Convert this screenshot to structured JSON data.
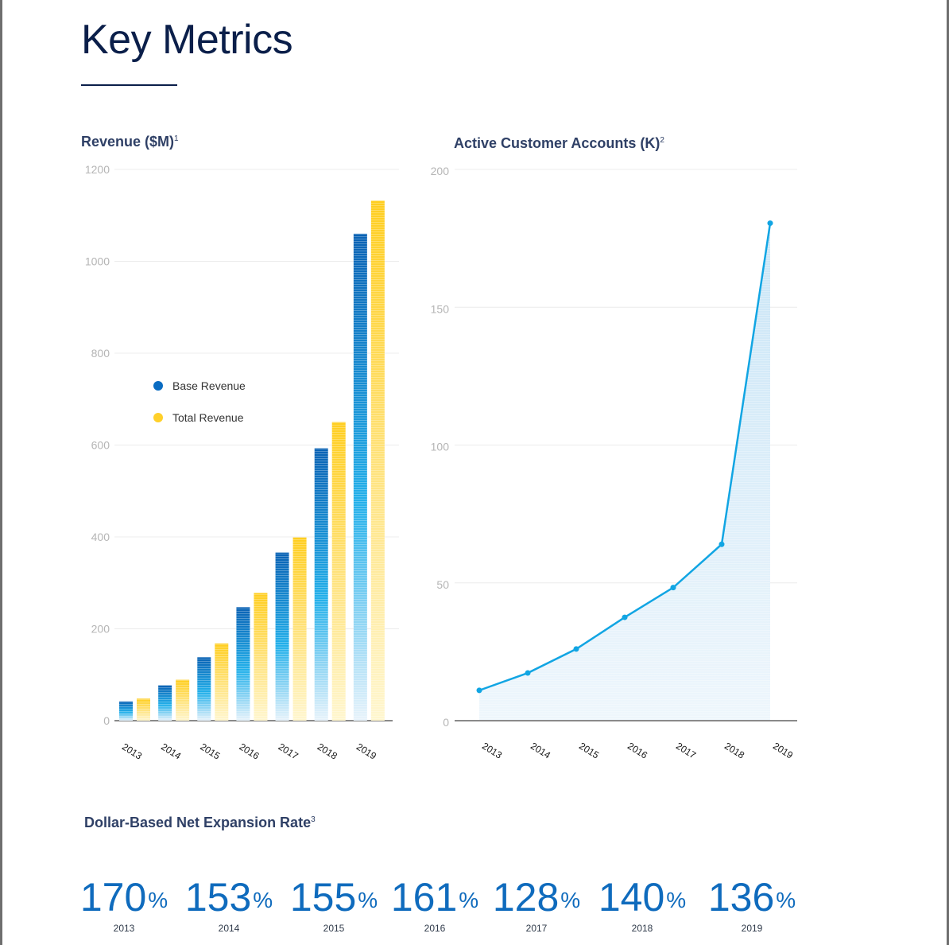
{
  "page": {
    "title": "Key Metrics"
  },
  "chart_data": [
    {
      "type": "bar",
      "title": "Revenue ($M)",
      "title_note": "1",
      "categories": [
        "2013",
        "2014",
        "2015",
        "2016",
        "2017",
        "2018",
        "2019"
      ],
      "series": [
        {
          "name": "Base Revenue",
          "color": "#0a6cc2",
          "values": [
            42,
            77,
            138,
            247,
            366,
            593,
            1060
          ]
        },
        {
          "name": "Total Revenue",
          "color": "#ffd02a",
          "values": [
            48,
            89,
            168,
            278,
            399,
            650,
            1132
          ]
        }
      ],
      "ylim": [
        0,
        1200
      ],
      "yticks": [
        0,
        200,
        400,
        600,
        800,
        1000,
        1200
      ],
      "grid": true,
      "legend": "left-middle"
    },
    {
      "type": "area",
      "title": "Active Customer Accounts (K)",
      "title_note": "2",
      "x": [
        "2013",
        "2014",
        "2015",
        "2016",
        "2017",
        "2018",
        "2019"
      ],
      "series": [
        {
          "color": "#11a5e3",
          "values": [
            11,
            17.3,
            26,
            37.5,
            48.3,
            64,
            180.5
          ]
        }
      ],
      "ylim": [
        0,
        200
      ],
      "yticks": [
        0,
        50,
        100,
        150,
        200
      ],
      "grid": true
    }
  ],
  "ndr": {
    "title": "Dollar-Based Net Expansion Rate",
    "title_note": "3",
    "items": [
      {
        "value": "170",
        "unit": "%",
        "year": "2013"
      },
      {
        "value": "153",
        "unit": "%",
        "year": "2014"
      },
      {
        "value": "155",
        "unit": "%",
        "year": "2015"
      },
      {
        "value": "161",
        "unit": "%",
        "year": "2016"
      },
      {
        "value": "128",
        "unit": "%",
        "year": "2017"
      },
      {
        "value": "140",
        "unit": "%",
        "year": "2018"
      },
      {
        "value": "136",
        "unit": "%",
        "year": "2019"
      }
    ]
  }
}
